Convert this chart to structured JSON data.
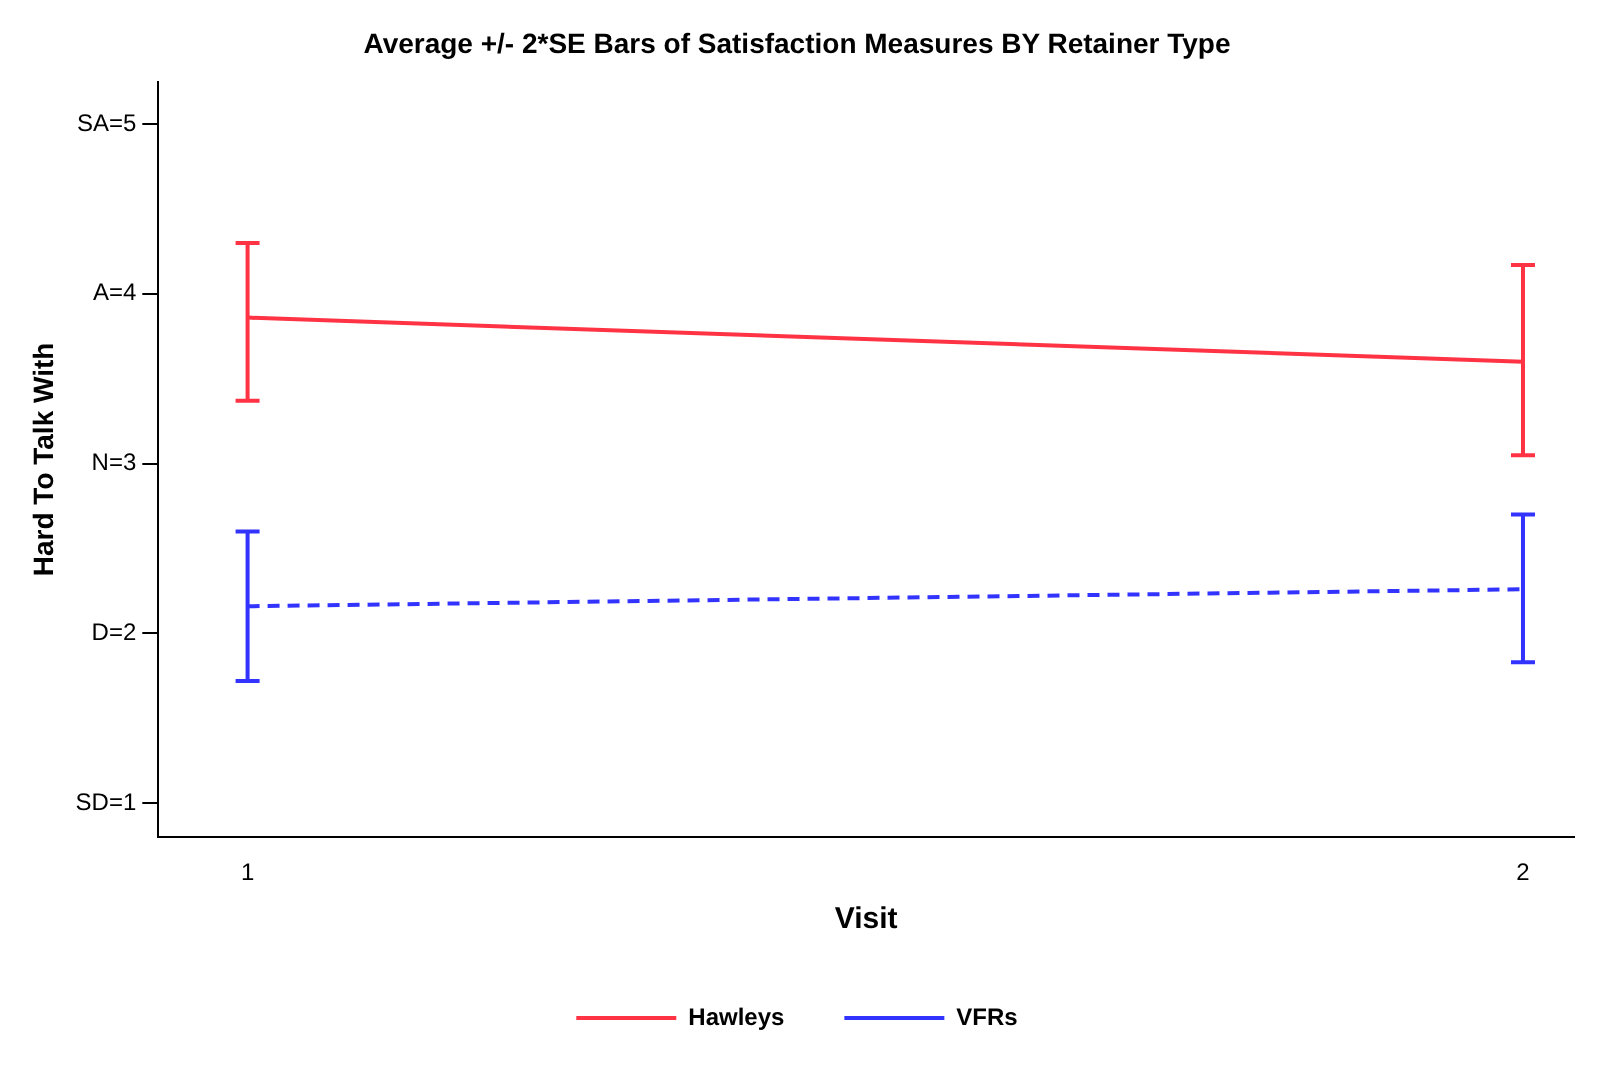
{
  "chart_data": {
    "type": "line",
    "title": "Average +/- 2*SE Bars of Satisfaction Measures BY Retainer Type",
    "xlabel": "Visit",
    "ylabel": "Hard To Talk With",
    "x": [
      1,
      2
    ],
    "series": [
      {
        "name": "Hawleys",
        "color": "#ff3344",
        "line_style": "solid",
        "values": [
          3.86,
          3.6
        ],
        "errors": [
          [
            3.37,
            4.3
          ],
          [
            3.05,
            4.17
          ]
        ]
      },
      {
        "name": "VFRs",
        "color": "#3333ff",
        "line_style": "dashed",
        "values": [
          2.16,
          2.26
        ],
        "errors": [
          [
            1.72,
            2.6
          ],
          [
            1.83,
            2.7
          ]
        ]
      }
    ],
    "xlim": [
      0.93,
      2.04
    ],
    "xticks": [
      1,
      2
    ],
    "ylim": [
      0.8,
      5.25
    ],
    "yticks": [
      {
        "value": 1,
        "label": "SD=1"
      },
      {
        "value": 2,
        "label": "D=2"
      },
      {
        "value": 3,
        "label": "N=3"
      },
      {
        "value": 4,
        "label": "A=4"
      },
      {
        "value": 5,
        "label": "SA=5"
      }
    ],
    "grid": false,
    "legend": "bottom",
    "marker": "none"
  }
}
